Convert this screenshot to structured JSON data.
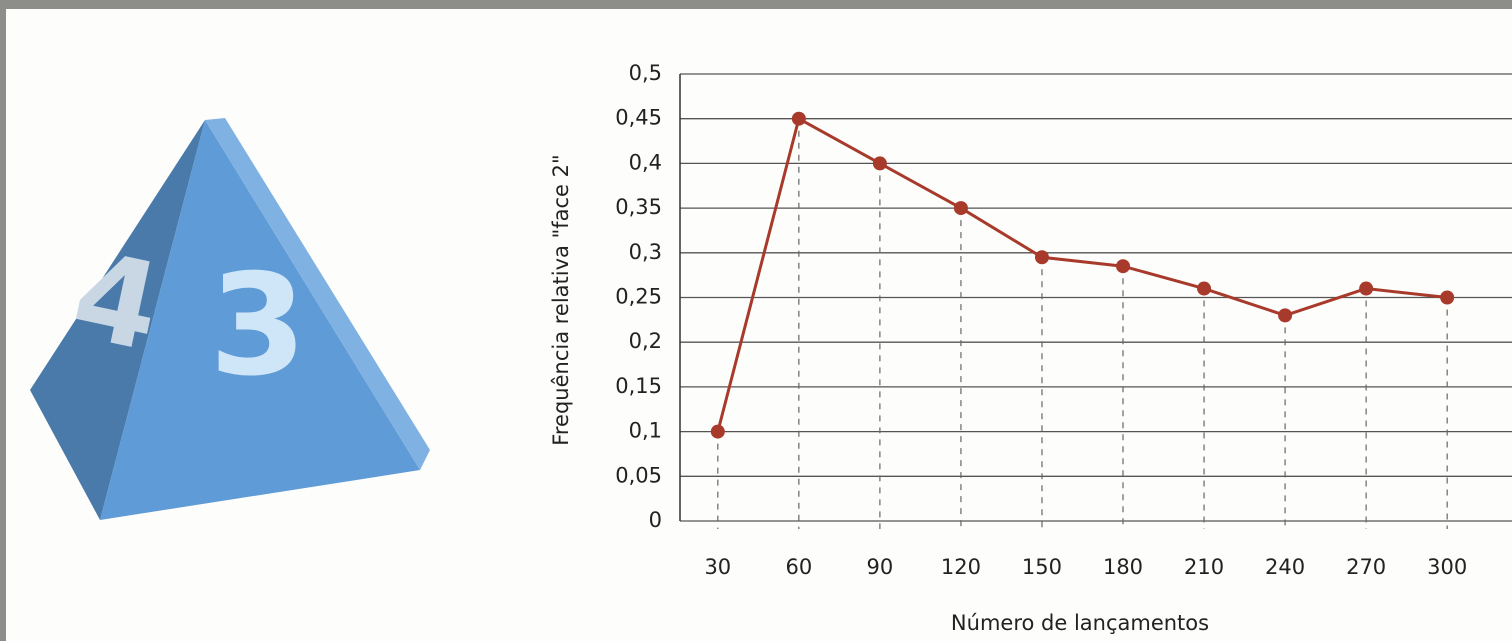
{
  "die": {
    "faces": [
      "4",
      "3"
    ]
  },
  "chart_data": {
    "type": "line",
    "x_label": "Número de lançamentos",
    "y_label": "Frequência relativa \"face 2\"",
    "x": [
      30,
      60,
      90,
      120,
      150,
      180,
      210,
      240,
      270,
      300
    ],
    "series": [
      {
        "color": "#a83a2c",
        "values": [
          0.1,
          0.45,
          0.4,
          0.35,
          0.295,
          0.285,
          0.26,
          0.23,
          0.26,
          0.25
        ]
      }
    ],
    "xlim": [
      16,
      324
    ],
    "xticks": [
      30,
      60,
      90,
      120,
      150,
      180,
      210,
      240,
      270,
      300
    ],
    "ylim": [
      0,
      0.5
    ],
    "yticks": [
      0,
      {
        "value": 0.05,
        "label": "0,05"
      },
      {
        "value": 0.1,
        "label": "0,1"
      },
      {
        "value": 0.15,
        "label": "0,15"
      },
      {
        "value": 0.2,
        "label": "0,2"
      },
      {
        "value": 0.25,
        "label": "0,25"
      },
      {
        "value": 0.3,
        "label": "0,3"
      },
      {
        "value": 0.35,
        "label": "0,35"
      },
      {
        "value": 0.4,
        "label": "0,4"
      },
      {
        "value": 0.45,
        "label": "0,45"
      },
      {
        "value": 0.5,
        "label": "0,5"
      }
    ],
    "grid": true,
    "drop_lines": true
  }
}
